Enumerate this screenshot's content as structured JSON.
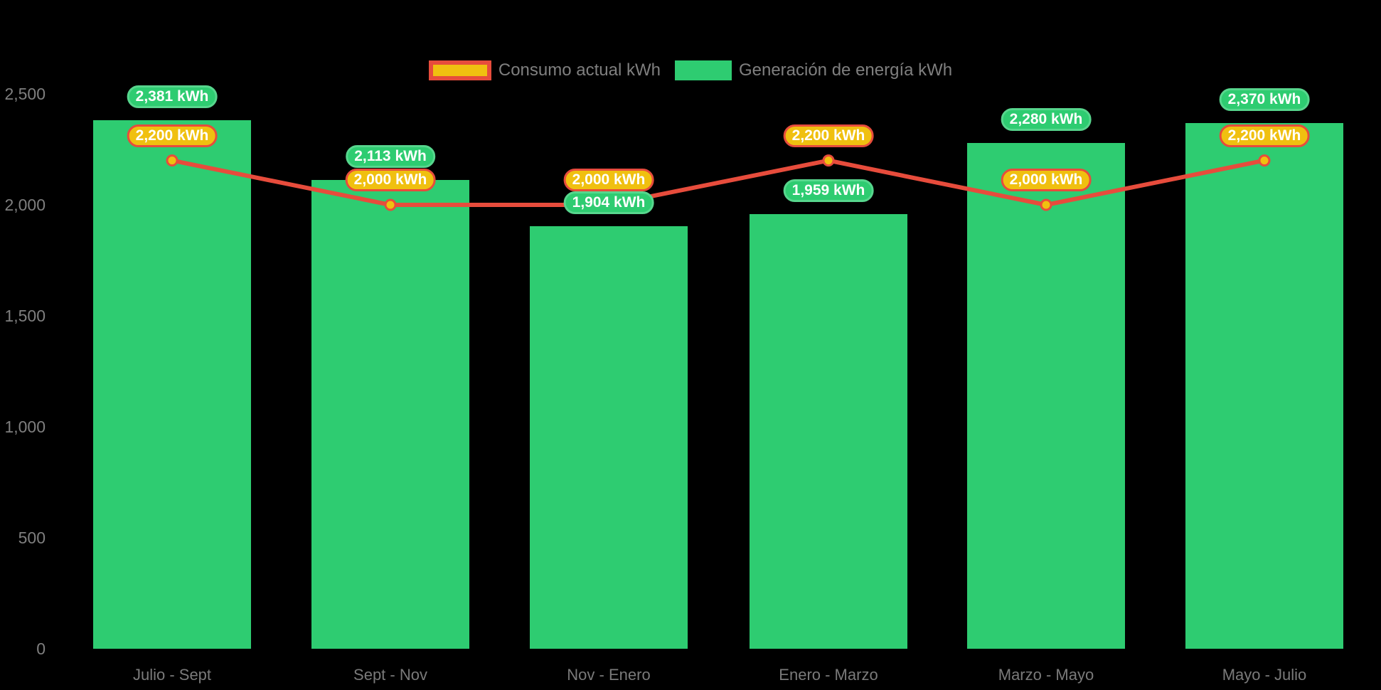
{
  "chart_data": {
    "type": "bar",
    "combo": "bar+line",
    "categories": [
      "Julio - Sept",
      "Sept - Nov",
      "Nov - Enero",
      "Enero - Marzo",
      "Marzo - Mayo",
      "Mayo - Julio"
    ],
    "series": [
      {
        "name": "Consumo actual kWh",
        "type": "line",
        "values": [
          2200,
          2000,
          2000,
          2200,
          2000,
          2200
        ],
        "labels": [
          "2,200 kWh",
          "2,000 kWh",
          "2,000 kWh",
          "2,200 kWh",
          "2,000 kWh",
          "2,200 kWh"
        ],
        "line_color": "#e74c3c",
        "marker_fill": "#f0c010",
        "marker_stroke": "#e74c3c",
        "label_bg": "#f0c010",
        "label_border": "#e74c3c"
      },
      {
        "name": "Generación de energía kWh",
        "type": "bar",
        "values": [
          2381,
          2113,
          1904,
          1959,
          2280,
          2370
        ],
        "labels": [
          "2,381 kWh",
          "2,113 kWh",
          "1,904 kWh",
          "1,959 kWh",
          "2,280 kWh",
          "2,370 kWh"
        ],
        "color": "#2ecc71",
        "label_bg": "#2ecc71",
        "label_border": "#57d68d"
      }
    ],
    "y_axis": {
      "ticks": [
        "0",
        "500",
        "1,000",
        "1,500",
        "2,000",
        "2,500"
      ],
      "tick_values": [
        0,
        500,
        1000,
        1500,
        2000,
        2500
      ],
      "range": [
        0,
        2500
      ]
    },
    "xlabel": "",
    "ylabel": "",
    "title": "",
    "legend": {
      "position": "top-center",
      "entries": [
        {
          "label": "Consumo actual kWh",
          "swatch_fill": "#f0c010",
          "swatch_border": "#e74c3c"
        },
        {
          "label": "Generación de energía kWh",
          "swatch_fill": "#2ecc71"
        }
      ]
    },
    "grid": false,
    "background": "#000000",
    "text_color": "#7f7f7f",
    "label_text_color": "#ffffff"
  }
}
